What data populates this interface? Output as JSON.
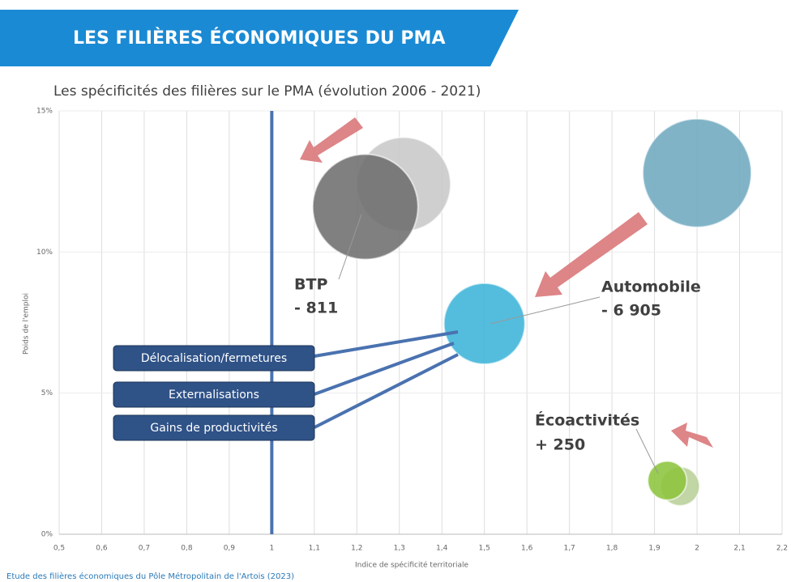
{
  "header": {
    "title": "LES FILIÈRES ÉCONOMIQUES DU PMA"
  },
  "chart_data": {
    "type": "bubble",
    "title": "Les spécificités des filières sur le PMA (évolution 2006 - 2021)",
    "x_label": "Indice de spécificité territoriale",
    "y_label": "Poids de l'emploi",
    "xlim": [
      0.5,
      2.2
    ],
    "xticks": [
      {
        "value": 0.5,
        "label": "0,5"
      },
      {
        "value": 0.6,
        "label": "0,6"
      },
      {
        "value": 0.7,
        "label": "0,7"
      },
      {
        "value": 0.8,
        "label": "0,8"
      },
      {
        "value": 0.9,
        "label": "0,9"
      },
      1,
      {
        "value": 1.1,
        "label": "1,1"
      },
      {
        "value": 1.2,
        "label": "1,2"
      },
      {
        "value": 1.3,
        "label": "1,3"
      },
      {
        "value": 1.4,
        "label": "1,4"
      },
      {
        "value": 1.5,
        "label": "1,5"
      },
      {
        "value": 1.6,
        "label": "1,6"
      },
      {
        "value": 1.7,
        "label": "1,7"
      },
      {
        "value": 1.8,
        "label": "1,8"
      },
      {
        "value": 1.9,
        "label": "1,9"
      },
      2,
      {
        "value": 2.1,
        "label": "2,1"
      },
      {
        "value": 2.2,
        "label": "2,2"
      }
    ],
    "ylim": [
      0,
      15
    ],
    "yticks": [
      {
        "value": 0,
        "label": "0%"
      },
      {
        "value": 5,
        "label": "5%"
      },
      {
        "value": 10,
        "label": "10%"
      },
      {
        "value": 15,
        "label": "15%"
      }
    ],
    "grid": true,
    "reference_x": 1,
    "points": [
      {
        "x": 1.31,
        "y": 12.4,
        "size": 58,
        "color": "#c8c8c8"
      },
      {
        "x": 1.22,
        "y": 11.6,
        "size": 65,
        "color": "#6e6e6e"
      },
      {
        "x": 2.0,
        "y": 12.8,
        "size": 67,
        "color": "#6fa8bf"
      },
      {
        "x": 1.5,
        "y": 7.46,
        "size": 50,
        "color": "#3cb4d8"
      },
      {
        "x": 1.96,
        "y": 1.7,
        "size": 24,
        "color": "#b8cf98"
      },
      {
        "x": 1.93,
        "y": 1.9,
        "size": 24,
        "color": "#8cc43c"
      }
    ],
    "annotations": [
      "BTP",
      "- 811",
      "Automobile",
      "- 6 905",
      "Écoactivités",
      "+ 250"
    ],
    "boxes": [
      "Délocalisation/fermetures",
      "Externalisations",
      "Gains de productivités"
    ]
  },
  "footer": "Etude des filières économiques du Pôle Métropolitain de l'Artois (2023)"
}
